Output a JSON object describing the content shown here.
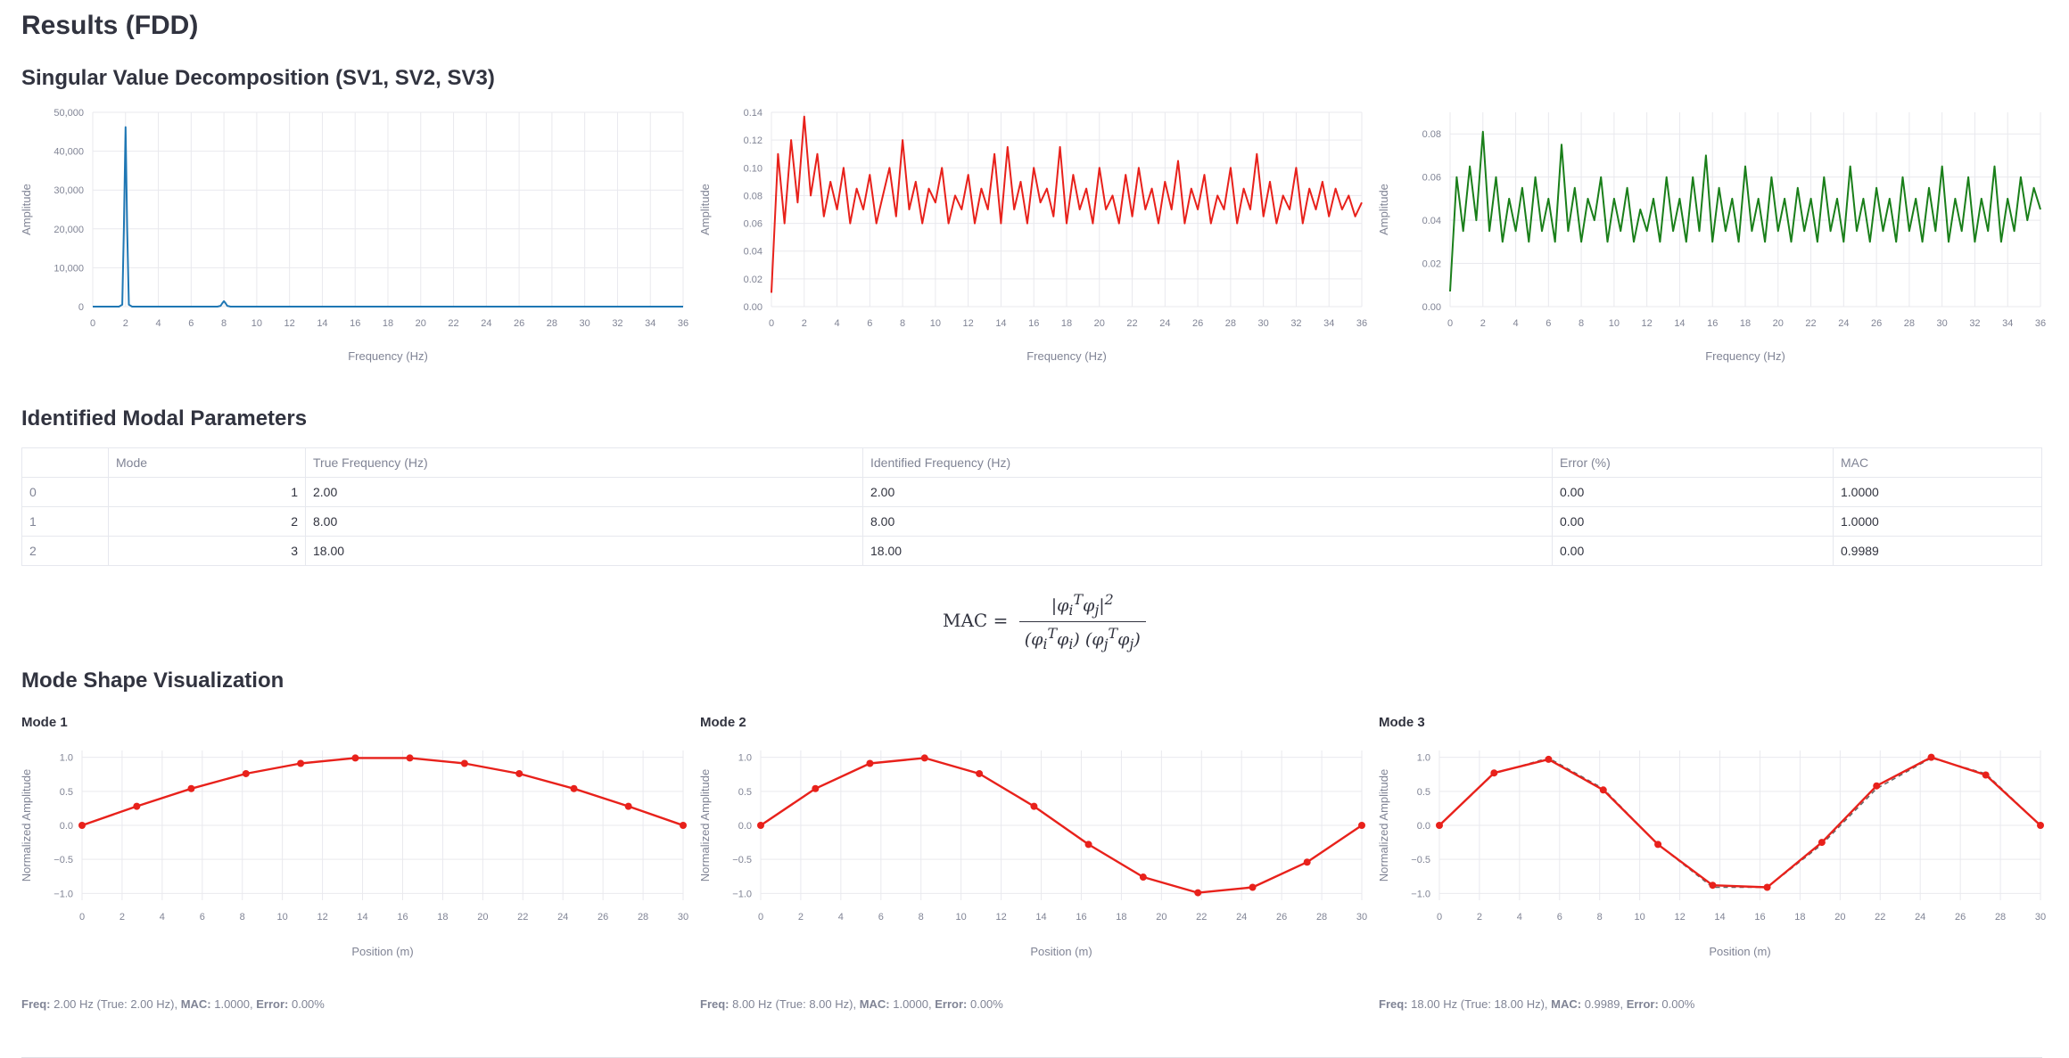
{
  "page": {
    "title": "Results (FDD)",
    "svd_heading": "Singular Value Decomposition (SV1, SV2, SV3)",
    "modal_heading": "Identified Modal Parameters",
    "mode_heading": "Mode Shape Visualization",
    "mac_lhs": "MAC ="
  },
  "colors": {
    "sv1": "#1f77b4",
    "sv2": "#e8211b",
    "sv3": "#1a7f1a",
    "mode": "#e8211b"
  },
  "table": {
    "columns": [
      "",
      "Mode",
      "True Frequency (Hz)",
      "Identified Frequency (Hz)",
      "Error (%)",
      "MAC"
    ],
    "rows": [
      [
        "0",
        "1",
        "2.00",
        "2.00",
        "0.00",
        "1.0000"
      ],
      [
        "1",
        "2",
        "8.00",
        "8.00",
        "0.00",
        "1.0000"
      ],
      [
        "2",
        "3",
        "18.00",
        "18.00",
        "0.00",
        "0.9989"
      ]
    ]
  },
  "chart_data": [
    {
      "type": "line",
      "id": "sv1",
      "xlabel": "Frequency (Hz)",
      "ylabel": "Amplitude",
      "xlim": [
        0,
        36
      ],
      "ylim": [
        0,
        50000
      ],
      "xticks": [
        0,
        2,
        4,
        6,
        8,
        10,
        12,
        14,
        16,
        18,
        20,
        22,
        24,
        26,
        28,
        30,
        32,
        34,
        36
      ],
      "yticks": [
        0,
        10000,
        20000,
        30000,
        40000,
        50000
      ],
      "ytick_labels": [
        "0",
        "10,000",
        "20,000",
        "30,000",
        "40,000",
        "50,000"
      ],
      "series": [
        {
          "x": [
            0,
            1.6,
            1.8,
            1.9,
            2.0,
            2.1,
            2.2,
            2.4,
            7.6,
            7.8,
            7.9,
            8.0,
            8.1,
            8.2,
            8.4,
            36
          ],
          "y": [
            0,
            0,
            500,
            20000,
            46200,
            20000,
            500,
            0,
            0,
            200,
            900,
            1400,
            900,
            200,
            0,
            0
          ]
        }
      ]
    },
    {
      "type": "line",
      "id": "sv2",
      "xlabel": "Frequency (Hz)",
      "ylabel": "Amplitude",
      "xlim": [
        0,
        36
      ],
      "ylim": [
        0,
        0.14
      ],
      "xticks": [
        0,
        2,
        4,
        6,
        8,
        10,
        12,
        14,
        16,
        18,
        20,
        22,
        24,
        26,
        28,
        30,
        32,
        34,
        36
      ],
      "yticks": [
        0,
        0.02,
        0.04,
        0.06,
        0.08,
        0.1,
        0.12,
        0.14
      ],
      "ytick_labels": [
        "0.00",
        "0.02",
        "0.04",
        "0.06",
        "0.08",
        "0.10",
        "0.12",
        "0.14"
      ],
      "series": [
        {
          "x": [
            0,
            0.4,
            0.8,
            1.2,
            1.6,
            2.0,
            2.4,
            2.8,
            3.2,
            3.6,
            4.0,
            4.4,
            4.8,
            5.2,
            5.6,
            6.0,
            6.4,
            6.8,
            7.2,
            7.6,
            8.0,
            8.4,
            8.8,
            9.2,
            9.6,
            10.0,
            10.4,
            10.8,
            11.2,
            11.6,
            12.0,
            12.4,
            12.8,
            13.2,
            13.6,
            14.0,
            14.4,
            14.8,
            15.2,
            15.6,
            16.0,
            16.4,
            16.8,
            17.2,
            17.6,
            18.0,
            18.4,
            18.8,
            19.2,
            19.6,
            20.0,
            20.4,
            20.8,
            21.2,
            21.6,
            22.0,
            22.4,
            22.8,
            23.2,
            23.6,
            24.0,
            24.4,
            24.8,
            25.2,
            25.6,
            26.0,
            26.4,
            26.8,
            27.2,
            27.6,
            28.0,
            28.4,
            28.8,
            29.2,
            29.6,
            30.0,
            30.4,
            30.8,
            31.2,
            31.6,
            32.0,
            32.4,
            32.8,
            33.2,
            33.6,
            34.0,
            34.4,
            34.8,
            35.2,
            35.6,
            36.0
          ],
          "y": [
            0.01,
            0.11,
            0.06,
            0.12,
            0.075,
            0.137,
            0.08,
            0.11,
            0.065,
            0.09,
            0.07,
            0.1,
            0.06,
            0.085,
            0.07,
            0.095,
            0.06,
            0.08,
            0.1,
            0.065,
            0.12,
            0.07,
            0.09,
            0.06,
            0.085,
            0.075,
            0.1,
            0.06,
            0.08,
            0.07,
            0.095,
            0.06,
            0.085,
            0.07,
            0.11,
            0.06,
            0.115,
            0.07,
            0.09,
            0.06,
            0.1,
            0.075,
            0.085,
            0.065,
            0.115,
            0.06,
            0.095,
            0.07,
            0.085,
            0.06,
            0.1,
            0.07,
            0.08,
            0.06,
            0.095,
            0.065,
            0.1,
            0.07,
            0.085,
            0.06,
            0.09,
            0.07,
            0.105,
            0.06,
            0.085,
            0.07,
            0.095,
            0.06,
            0.08,
            0.07,
            0.1,
            0.06,
            0.085,
            0.07,
            0.11,
            0.065,
            0.09,
            0.06,
            0.08,
            0.07,
            0.1,
            0.06,
            0.085,
            0.07,
            0.09,
            0.065,
            0.085,
            0.07,
            0.08,
            0.065,
            0.075
          ]
        }
      ]
    },
    {
      "type": "line",
      "id": "sv3",
      "xlabel": "Frequency (Hz)",
      "ylabel": "Amplitude",
      "xlim": [
        0,
        36
      ],
      "ylim": [
        0,
        0.09
      ],
      "xticks": [
        0,
        2,
        4,
        6,
        8,
        10,
        12,
        14,
        16,
        18,
        20,
        22,
        24,
        26,
        28,
        30,
        32,
        34,
        36
      ],
      "yticks": [
        0,
        0.02,
        0.04,
        0.06,
        0.08
      ],
      "ytick_labels": [
        "0.00",
        "0.02",
        "0.04",
        "0.06",
        "0.08"
      ],
      "series": [
        {
          "x": [
            0,
            0.4,
            0.8,
            1.2,
            1.6,
            2.0,
            2.4,
            2.8,
            3.2,
            3.6,
            4.0,
            4.4,
            4.8,
            5.2,
            5.6,
            6.0,
            6.4,
            6.8,
            7.2,
            7.6,
            8.0,
            8.4,
            8.8,
            9.2,
            9.6,
            10.0,
            10.4,
            10.8,
            11.2,
            11.6,
            12.0,
            12.4,
            12.8,
            13.2,
            13.6,
            14.0,
            14.4,
            14.8,
            15.2,
            15.6,
            16.0,
            16.4,
            16.8,
            17.2,
            17.6,
            18.0,
            18.4,
            18.8,
            19.2,
            19.6,
            20.0,
            20.4,
            20.8,
            21.2,
            21.6,
            22.0,
            22.4,
            22.8,
            23.2,
            23.6,
            24.0,
            24.4,
            24.8,
            25.2,
            25.6,
            26.0,
            26.4,
            26.8,
            27.2,
            27.6,
            28.0,
            28.4,
            28.8,
            29.2,
            29.6,
            30.0,
            30.4,
            30.8,
            31.2,
            31.6,
            32.0,
            32.4,
            32.8,
            33.2,
            33.6,
            34.0,
            34.4,
            34.8,
            35.2,
            35.6,
            36.0
          ],
          "y": [
            0.007,
            0.06,
            0.035,
            0.065,
            0.04,
            0.081,
            0.035,
            0.06,
            0.03,
            0.05,
            0.035,
            0.055,
            0.03,
            0.06,
            0.035,
            0.05,
            0.03,
            0.075,
            0.035,
            0.055,
            0.03,
            0.05,
            0.04,
            0.06,
            0.03,
            0.05,
            0.035,
            0.055,
            0.03,
            0.045,
            0.035,
            0.05,
            0.03,
            0.06,
            0.035,
            0.05,
            0.03,
            0.06,
            0.035,
            0.07,
            0.03,
            0.055,
            0.035,
            0.05,
            0.03,
            0.065,
            0.035,
            0.05,
            0.03,
            0.06,
            0.035,
            0.05,
            0.03,
            0.055,
            0.035,
            0.05,
            0.03,
            0.06,
            0.035,
            0.05,
            0.03,
            0.065,
            0.035,
            0.05,
            0.03,
            0.055,
            0.035,
            0.05,
            0.03,
            0.06,
            0.035,
            0.05,
            0.03,
            0.055,
            0.035,
            0.065,
            0.03,
            0.05,
            0.035,
            0.06,
            0.03,
            0.05,
            0.035,
            0.065,
            0.03,
            0.05,
            0.035,
            0.06,
            0.04,
            0.055,
            0.045
          ]
        }
      ]
    },
    {
      "type": "line",
      "id": "mode1",
      "title": "Mode 1",
      "xlabel": "Position (m)",
      "ylabel": "Normalized Amplitude",
      "xlim": [
        0,
        30
      ],
      "ylim": [
        -1.1,
        1.1
      ],
      "xticks": [
        0,
        2,
        4,
        6,
        8,
        10,
        12,
        14,
        16,
        18,
        20,
        22,
        24,
        26,
        28,
        30
      ],
      "yticks": [
        -1.0,
        -0.5,
        0.0,
        0.5,
        1.0
      ],
      "ytick_labels": [
        "−1.0",
        "−0.5",
        "0.0",
        "0.5",
        "1.0"
      ],
      "series": [
        {
          "style": "dashed",
          "x": [
            0,
            2.73,
            5.45,
            8.18,
            10.91,
            13.64,
            16.36,
            19.09,
            21.82,
            24.55,
            27.27,
            30
          ],
          "y": [
            0,
            0.28,
            0.54,
            0.76,
            0.91,
            0.99,
            0.99,
            0.91,
            0.76,
            0.54,
            0.28,
            0
          ]
        },
        {
          "style": "solid",
          "markers": true,
          "x": [
            0,
            2.73,
            5.45,
            8.18,
            10.91,
            13.64,
            16.36,
            19.09,
            21.82,
            24.55,
            27.27,
            30
          ],
          "y": [
            0,
            0.28,
            0.54,
            0.76,
            0.91,
            0.99,
            0.99,
            0.91,
            0.76,
            0.54,
            0.28,
            0
          ]
        }
      ],
      "caption": {
        "freq_label": "Freq:",
        "freq_text": " 2.00 Hz (True: 2.00 Hz), ",
        "mac_label": "MAC:",
        "mac_text": " 1.0000, ",
        "err_label": "Error:",
        "err_text": " 0.00%"
      }
    },
    {
      "type": "line",
      "id": "mode2",
      "title": "Mode 2",
      "xlabel": "Position (m)",
      "ylabel": "Normalized Amplitude",
      "xlim": [
        0,
        30
      ],
      "ylim": [
        -1.1,
        1.1
      ],
      "xticks": [
        0,
        2,
        4,
        6,
        8,
        10,
        12,
        14,
        16,
        18,
        20,
        22,
        24,
        26,
        28,
        30
      ],
      "yticks": [
        -1.0,
        -0.5,
        0.0,
        0.5,
        1.0
      ],
      "ytick_labels": [
        "−1.0",
        "−0.5",
        "0.0",
        "0.5",
        "1.0"
      ],
      "series": [
        {
          "style": "dashed",
          "x": [
            0,
            2.73,
            5.45,
            8.18,
            10.91,
            13.64,
            16.36,
            19.09,
            21.82,
            24.55,
            27.27,
            30
          ],
          "y": [
            0,
            0.54,
            0.91,
            0.99,
            0.76,
            0.28,
            -0.28,
            -0.76,
            -0.99,
            -0.91,
            -0.54,
            0
          ]
        },
        {
          "style": "solid",
          "markers": true,
          "x": [
            0,
            2.73,
            5.45,
            8.18,
            10.91,
            13.64,
            16.36,
            19.09,
            21.82,
            24.55,
            27.27,
            30
          ],
          "y": [
            0,
            0.54,
            0.91,
            0.99,
            0.76,
            0.28,
            -0.28,
            -0.76,
            -0.99,
            -0.91,
            -0.54,
            0
          ]
        }
      ],
      "caption": {
        "freq_label": "Freq:",
        "freq_text": " 8.00 Hz (True: 8.00 Hz), ",
        "mac_label": "MAC:",
        "mac_text": " 1.0000, ",
        "err_label": "Error:",
        "err_text": " 0.00%"
      }
    },
    {
      "type": "line",
      "id": "mode3",
      "title": "Mode 3",
      "xlabel": "Position (m)",
      "ylabel": "Normalized Amplitude",
      "xlim": [
        0,
        30
      ],
      "ylim": [
        -1.1,
        1.1
      ],
      "xticks": [
        0,
        2,
        4,
        6,
        8,
        10,
        12,
        14,
        16,
        18,
        20,
        22,
        24,
        26,
        28,
        30
      ],
      "yticks": [
        -1.0,
        -0.5,
        0.0,
        0.5,
        1.0
      ],
      "ytick_labels": [
        "−1.0",
        "−0.5",
        "0.0",
        "0.5",
        "1.0"
      ],
      "series": [
        {
          "style": "dashed",
          "x": [
            0,
            2.73,
            5.45,
            8.18,
            10.91,
            13.64,
            16.36,
            19.09,
            21.82,
            24.55,
            27.27,
            30
          ],
          "y": [
            0,
            0.76,
            0.99,
            0.54,
            -0.28,
            -0.91,
            -0.91,
            -0.28,
            0.54,
            0.99,
            0.76,
            0
          ]
        },
        {
          "style": "solid",
          "markers": true,
          "x": [
            0,
            2.73,
            5.45,
            8.18,
            10.91,
            13.64,
            16.36,
            19.09,
            21.82,
            24.55,
            27.27,
            30
          ],
          "y": [
            0,
            0.77,
            0.97,
            0.52,
            -0.28,
            -0.88,
            -0.91,
            -0.25,
            0.58,
            1.0,
            0.74,
            0
          ]
        }
      ],
      "caption": {
        "freq_label": "Freq:",
        "freq_text": " 18.00 Hz (True: 18.00 Hz), ",
        "mac_label": "MAC:",
        "mac_text": " 0.9989, ",
        "err_label": "Error:",
        "err_text": " 0.00%"
      }
    }
  ]
}
